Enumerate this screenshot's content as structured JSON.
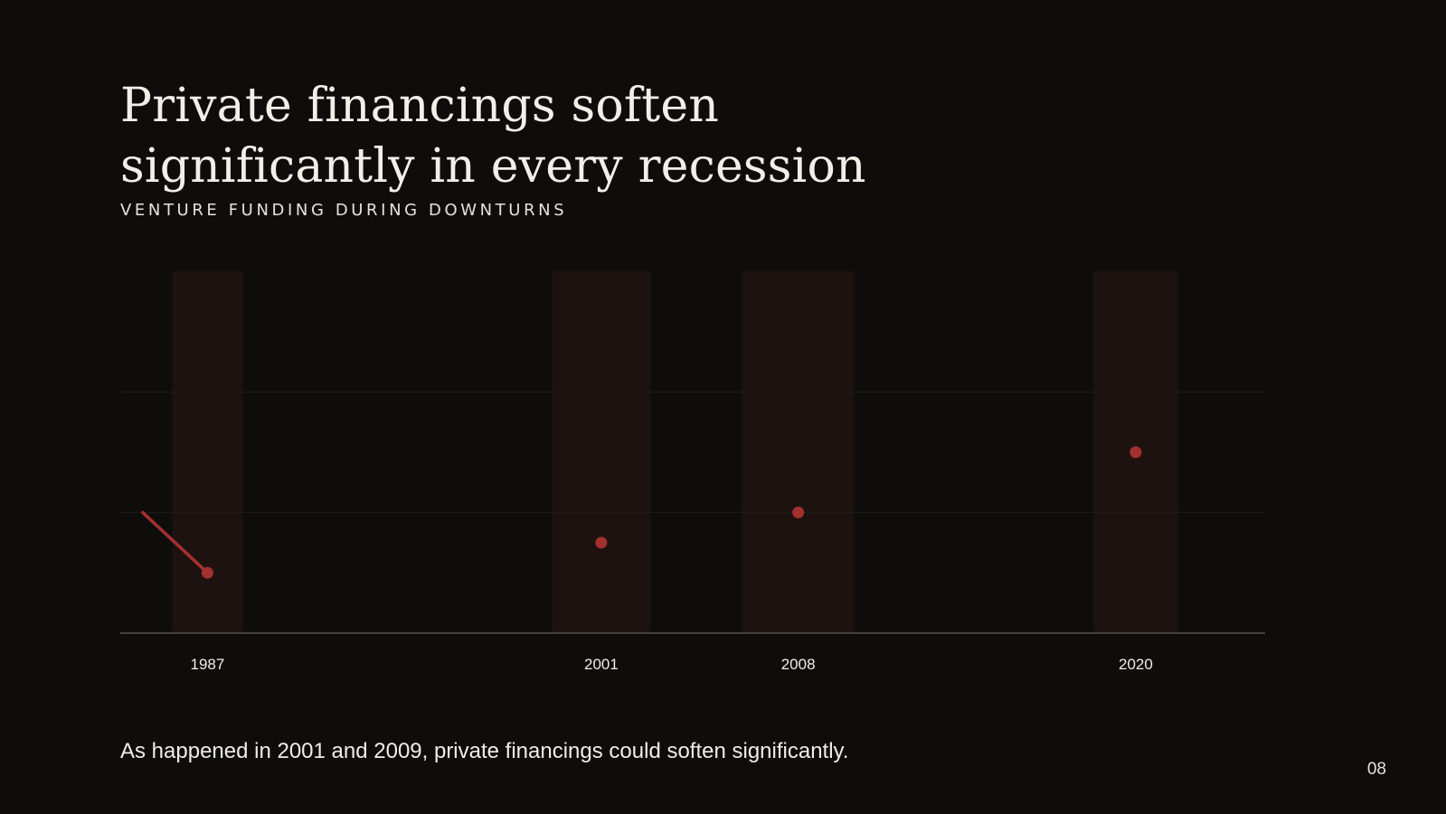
{
  "slide": {
    "title": "Private financings soften significantly in every recession",
    "subtitle": "VENTURE FUNDING DURING DOWNTURNS",
    "caption": "As happened in 2001 and 2009, private financings could soften significantly.",
    "page_number": "08"
  },
  "colors": {
    "background": "#0e0d0c",
    "text": "#f1ece6",
    "accent": "#a3302f",
    "recession_band": "#1e1210",
    "gridline": "#1f1d1b",
    "baseline": "#55504b"
  },
  "chart_data": {
    "type": "line",
    "title": "",
    "xlabel": "",
    "ylabel": "",
    "x": [
      1987,
      2001,
      2008,
      2020
    ],
    "categories": [
      "1987",
      "2001",
      "2008",
      "2020"
    ],
    "series": [
      {
        "values": [
          0.2,
          0.3,
          0.4,
          0.6
        ]
      }
    ],
    "lead_in_start": 0.4,
    "ylim": [
      0,
      1.2
    ],
    "recession_bands": [
      {
        "label": "1987",
        "width_years": 2.5
      },
      {
        "label": "2001",
        "width_years": 3.5
      },
      {
        "label": "2008",
        "width_years": 4.0
      },
      {
        "label": "2020",
        "width_years": 3.0
      }
    ],
    "grid": true,
    "legend": "none"
  }
}
